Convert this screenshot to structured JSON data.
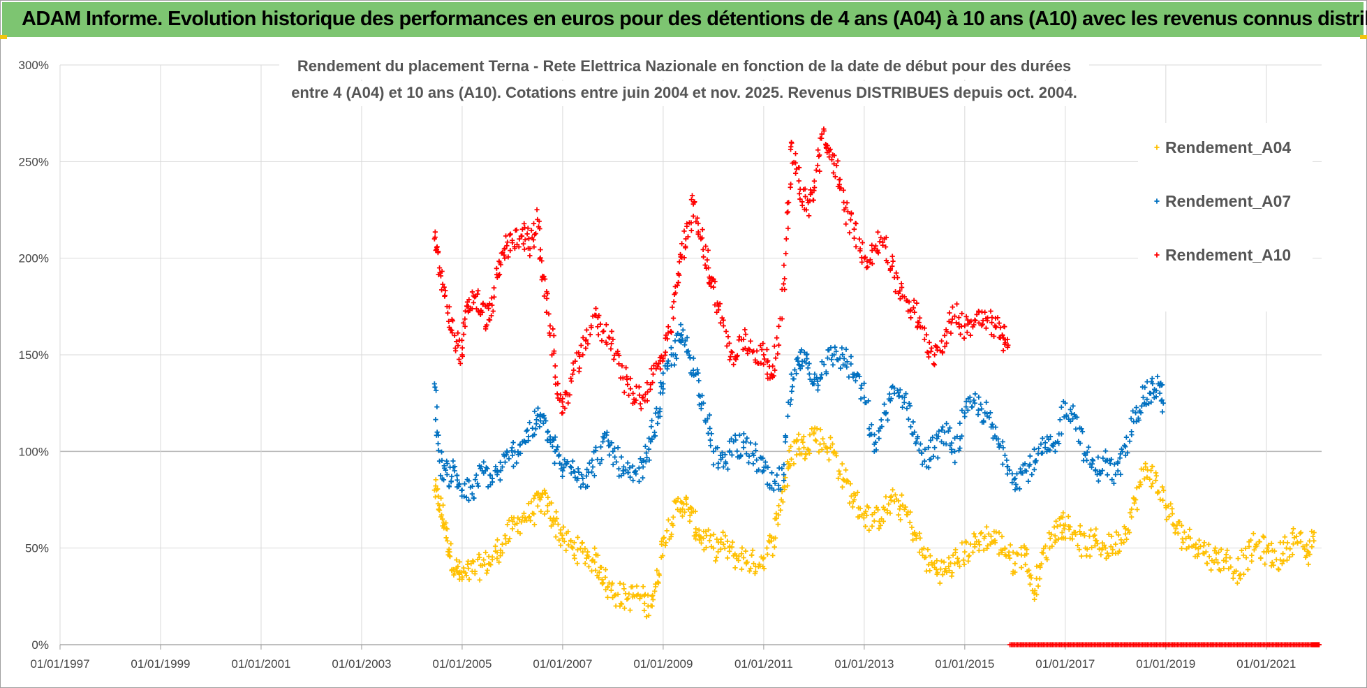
{
  "header": {
    "title": "ADAM Informe. Evolution historique des performances en euros pour des détentions de 4 ans (A04) à 10 ans (A10) avec les revenus connus distribués"
  },
  "chart_data": {
    "type": "scatter",
    "title_lines": [
      "Rendement du placement Terna - Rete Elettrica Nazionale en fonction de la date de début pour des durées",
      "entre 4 (A04) et 10 ans (A10).  Cotations entre juin 2004 et nov. 2025.  Revenus DISTRIBUES depuis oct. 2004."
    ],
    "xlim": [
      1997.0,
      2022.1
    ],
    "ylim": [
      0,
      300
    ],
    "x_ticks": [
      {
        "value": 1997,
        "label": "01/01/1997"
      },
      {
        "value": 1999,
        "label": "01/01/1999"
      },
      {
        "value": 2001,
        "label": "01/01/2001"
      },
      {
        "value": 2003,
        "label": "01/01/2003"
      },
      {
        "value": 2005,
        "label": "01/01/2005"
      },
      {
        "value": 2007,
        "label": "01/01/2007"
      },
      {
        "value": 2009,
        "label": "01/01/2009"
      },
      {
        "value": 2011,
        "label": "01/01/2011"
      },
      {
        "value": 2013,
        "label": "01/01/2013"
      },
      {
        "value": 2015,
        "label": "01/01/2015"
      },
      {
        "value": 2017,
        "label": "01/01/2017"
      },
      {
        "value": 2019,
        "label": "01/01/2019"
      },
      {
        "value": 2021,
        "label": "01/01/2021"
      }
    ],
    "y_ticks": [
      {
        "value": 0,
        "label": "0%"
      },
      {
        "value": 50,
        "label": "50%"
      },
      {
        "value": 100,
        "label": "100%"
      },
      {
        "value": 150,
        "label": "150%"
      },
      {
        "value": 200,
        "label": "200%"
      },
      {
        "value": 250,
        "label": "250%"
      },
      {
        "value": 300,
        "label": "300%"
      }
    ],
    "legend_position": "top-right",
    "series": [
      {
        "name": "Rendement_A04",
        "color": "#ffc000",
        "x": [
          2004.45,
          2004.55,
          2004.65,
          2004.75,
          2004.9,
          2005.0,
          2005.2,
          2005.4,
          2005.6,
          2005.8,
          2006.0,
          2006.2,
          2006.4,
          2006.55,
          2006.7,
          2006.85,
          2007.0,
          2007.2,
          2007.4,
          2007.6,
          2007.75,
          2007.9,
          2008.1,
          2008.3,
          2008.5,
          2008.7,
          2008.85,
          2009.0,
          2009.2,
          2009.35,
          2009.5,
          2009.65,
          2009.8,
          2010.0,
          2010.2,
          2010.4,
          2010.6,
          2010.8,
          2011.0,
          2011.2,
          2011.35,
          2011.5,
          2011.65,
          2011.8,
          2012.0,
          2012.2,
          2012.4,
          2012.6,
          2012.8,
          2013.0,
          2013.2,
          2013.4,
          2013.6,
          2013.8,
          2014.0,
          2014.2,
          2014.4,
          2014.6,
          2014.8,
          2015.0,
          2015.2,
          2015.4,
          2015.6,
          2015.8,
          2016.0,
          2016.2,
          2016.35,
          2016.5,
          2016.7,
          2016.9,
          2017.0,
          2017.2,
          2017.4,
          2017.6,
          2017.8,
          2018.0,
          2018.2,
          2018.4,
          2018.6,
          2018.8,
          2019.0,
          2019.2,
          2019.4,
          2019.6,
          2019.8,
          2020.0,
          2020.2,
          2020.4,
          2020.6,
          2020.8,
          2021.0,
          2021.2,
          2021.4,
          2021.6,
          2021.8,
          2021.95
        ],
        "y": [
          80,
          72,
          62,
          48,
          38,
          35,
          38,
          41,
          44,
          52,
          60,
          66,
          68,
          75,
          72,
          64,
          55,
          50,
          48,
          44,
          40,
          30,
          26,
          24,
          26,
          20,
          30,
          55,
          66,
          74,
          70,
          60,
          55,
          50,
          52,
          46,
          45,
          42,
          45,
          55,
          75,
          92,
          105,
          102,
          110,
          104,
          100,
          85,
          75,
          68,
          64,
          70,
          74,
          70,
          58,
          45,
          40,
          38,
          42,
          48,
          52,
          56,
          54,
          50,
          42,
          50,
          28,
          40,
          55,
          62,
          62,
          58,
          50,
          54,
          50,
          52,
          60,
          75,
          92,
          85,
          72,
          60,
          55,
          52,
          48,
          44,
          45,
          38,
          45,
          52,
          48,
          44,
          50,
          56,
          46,
          58
        ]
      },
      {
        "name": "Rendement_A07",
        "color": "#0070c0",
        "x": [
          2004.45,
          2004.55,
          2004.7,
          2004.85,
          2005.0,
          2005.2,
          2005.4,
          2005.6,
          2005.8,
          2006.0,
          2006.2,
          2006.4,
          2006.55,
          2006.7,
          2006.85,
          2007.0,
          2007.2,
          2007.4,
          2007.6,
          2007.8,
          2008.0,
          2008.2,
          2008.4,
          2008.6,
          2008.75,
          2008.9,
          2009.0,
          2009.2,
          2009.35,
          2009.5,
          2009.65,
          2009.8,
          2010.0,
          2010.2,
          2010.4,
          2010.6,
          2010.8,
          2011.0,
          2011.2,
          2011.4,
          2011.55,
          2011.7,
          2011.85,
          2012.0,
          2012.2,
          2012.4,
          2012.6,
          2012.8,
          2013.0,
          2013.2,
          2013.4,
          2013.6,
          2013.8,
          2014.0,
          2014.2,
          2014.4,
          2014.6,
          2014.8,
          2015.0,
          2015.2,
          2015.4,
          2015.6,
          2015.8,
          2016.0,
          2016.2,
          2016.4,
          2016.6,
          2016.8,
          2017.0,
          2017.2,
          2017.4,
          2017.6,
          2017.8,
          2018.0,
          2018.2,
          2018.4,
          2018.55,
          2018.7,
          2018.85,
          2018.95
        ],
        "y": [
          135,
          95,
          88,
          90,
          80,
          78,
          90,
          86,
          92,
          98,
          105,
          112,
          118,
          110,
          100,
          90,
          95,
          86,
          92,
          105,
          100,
          90,
          85,
          92,
          105,
          120,
          135,
          150,
          160,
          152,
          140,
          125,
          100,
          92,
          105,
          102,
          98,
          90,
          80,
          88,
          140,
          145,
          150,
          135,
          145,
          150,
          148,
          140,
          128,
          100,
          120,
          130,
          128,
          110,
          95,
          102,
          110,
          100,
          118,
          125,
          120,
          108,
          98,
          86,
          90,
          95,
          102,
          100,
          125,
          118,
          98,
          90,
          95,
          88,
          98,
          120,
          128,
          130,
          135,
          125
        ]
      },
      {
        "name": "Rendement_A10",
        "color": "#ff0000",
        "x": [
          2004.45,
          2004.55,
          2004.7,
          2004.85,
          2005.0,
          2005.1,
          2005.25,
          2005.4,
          2005.55,
          2005.7,
          2005.85,
          2006.0,
          2006.2,
          2006.35,
          2006.5,
          2006.6,
          2006.75,
          2006.9,
          2007.0,
          2007.2,
          2007.4,
          2007.6,
          2007.8,
          2008.0,
          2008.2,
          2008.4,
          2008.6,
          2008.8,
          2009.0,
          2009.15,
          2009.3,
          2009.45,
          2009.6,
          2009.75,
          2009.9,
          2010.0,
          2010.2,
          2010.4,
          2010.6,
          2010.8,
          2011.0,
          2011.15,
          2011.3,
          2011.45,
          2011.55,
          2011.7,
          2011.85,
          2012.0,
          2012.15,
          2012.3,
          2012.45,
          2012.6,
          2012.8,
          2013.0,
          2013.2,
          2013.4,
          2013.6,
          2013.8,
          2014.0,
          2014.2,
          2014.4,
          2014.6,
          2014.8,
          2015.0,
          2015.2,
          2015.4,
          2015.6,
          2015.75,
          2015.85
        ],
        "y": [
          210,
          195,
          175,
          160,
          150,
          175,
          180,
          172,
          168,
          190,
          205,
          208,
          215,
          205,
          220,
          190,
          165,
          135,
          120,
          140,
          150,
          170,
          162,
          158,
          138,
          130,
          128,
          140,
          148,
          162,
          192,
          210,
          228,
          210,
          195,
          185,
          165,
          145,
          158,
          152,
          150,
          140,
          155,
          210,
          260,
          240,
          225,
          235,
          262,
          255,
          248,
          225,
          215,
          200,
          205,
          210,
          190,
          180,
          172,
          158,
          150,
          160,
          170,
          165,
          168,
          172,
          165,
          160,
          158
        ]
      },
      {
        "name": "",
        "color": "#ff0000",
        "x": [
          2015.9,
          2016.2,
          2016.5,
          2016.8,
          2017.1,
          2017.4,
          2017.7,
          2018.0,
          2018.3,
          2018.6,
          2018.9,
          2019.2,
          2019.5,
          2019.8,
          2020.1,
          2020.4,
          2020.7,
          2021.0,
          2021.3,
          2021.6,
          2021.9,
          2022.05
        ],
        "y": [
          0,
          0,
          0,
          0,
          0,
          0,
          0,
          0,
          0,
          0,
          0,
          0,
          0,
          0,
          0,
          0,
          0,
          0,
          0,
          0,
          0,
          0
        ]
      }
    ]
  }
}
